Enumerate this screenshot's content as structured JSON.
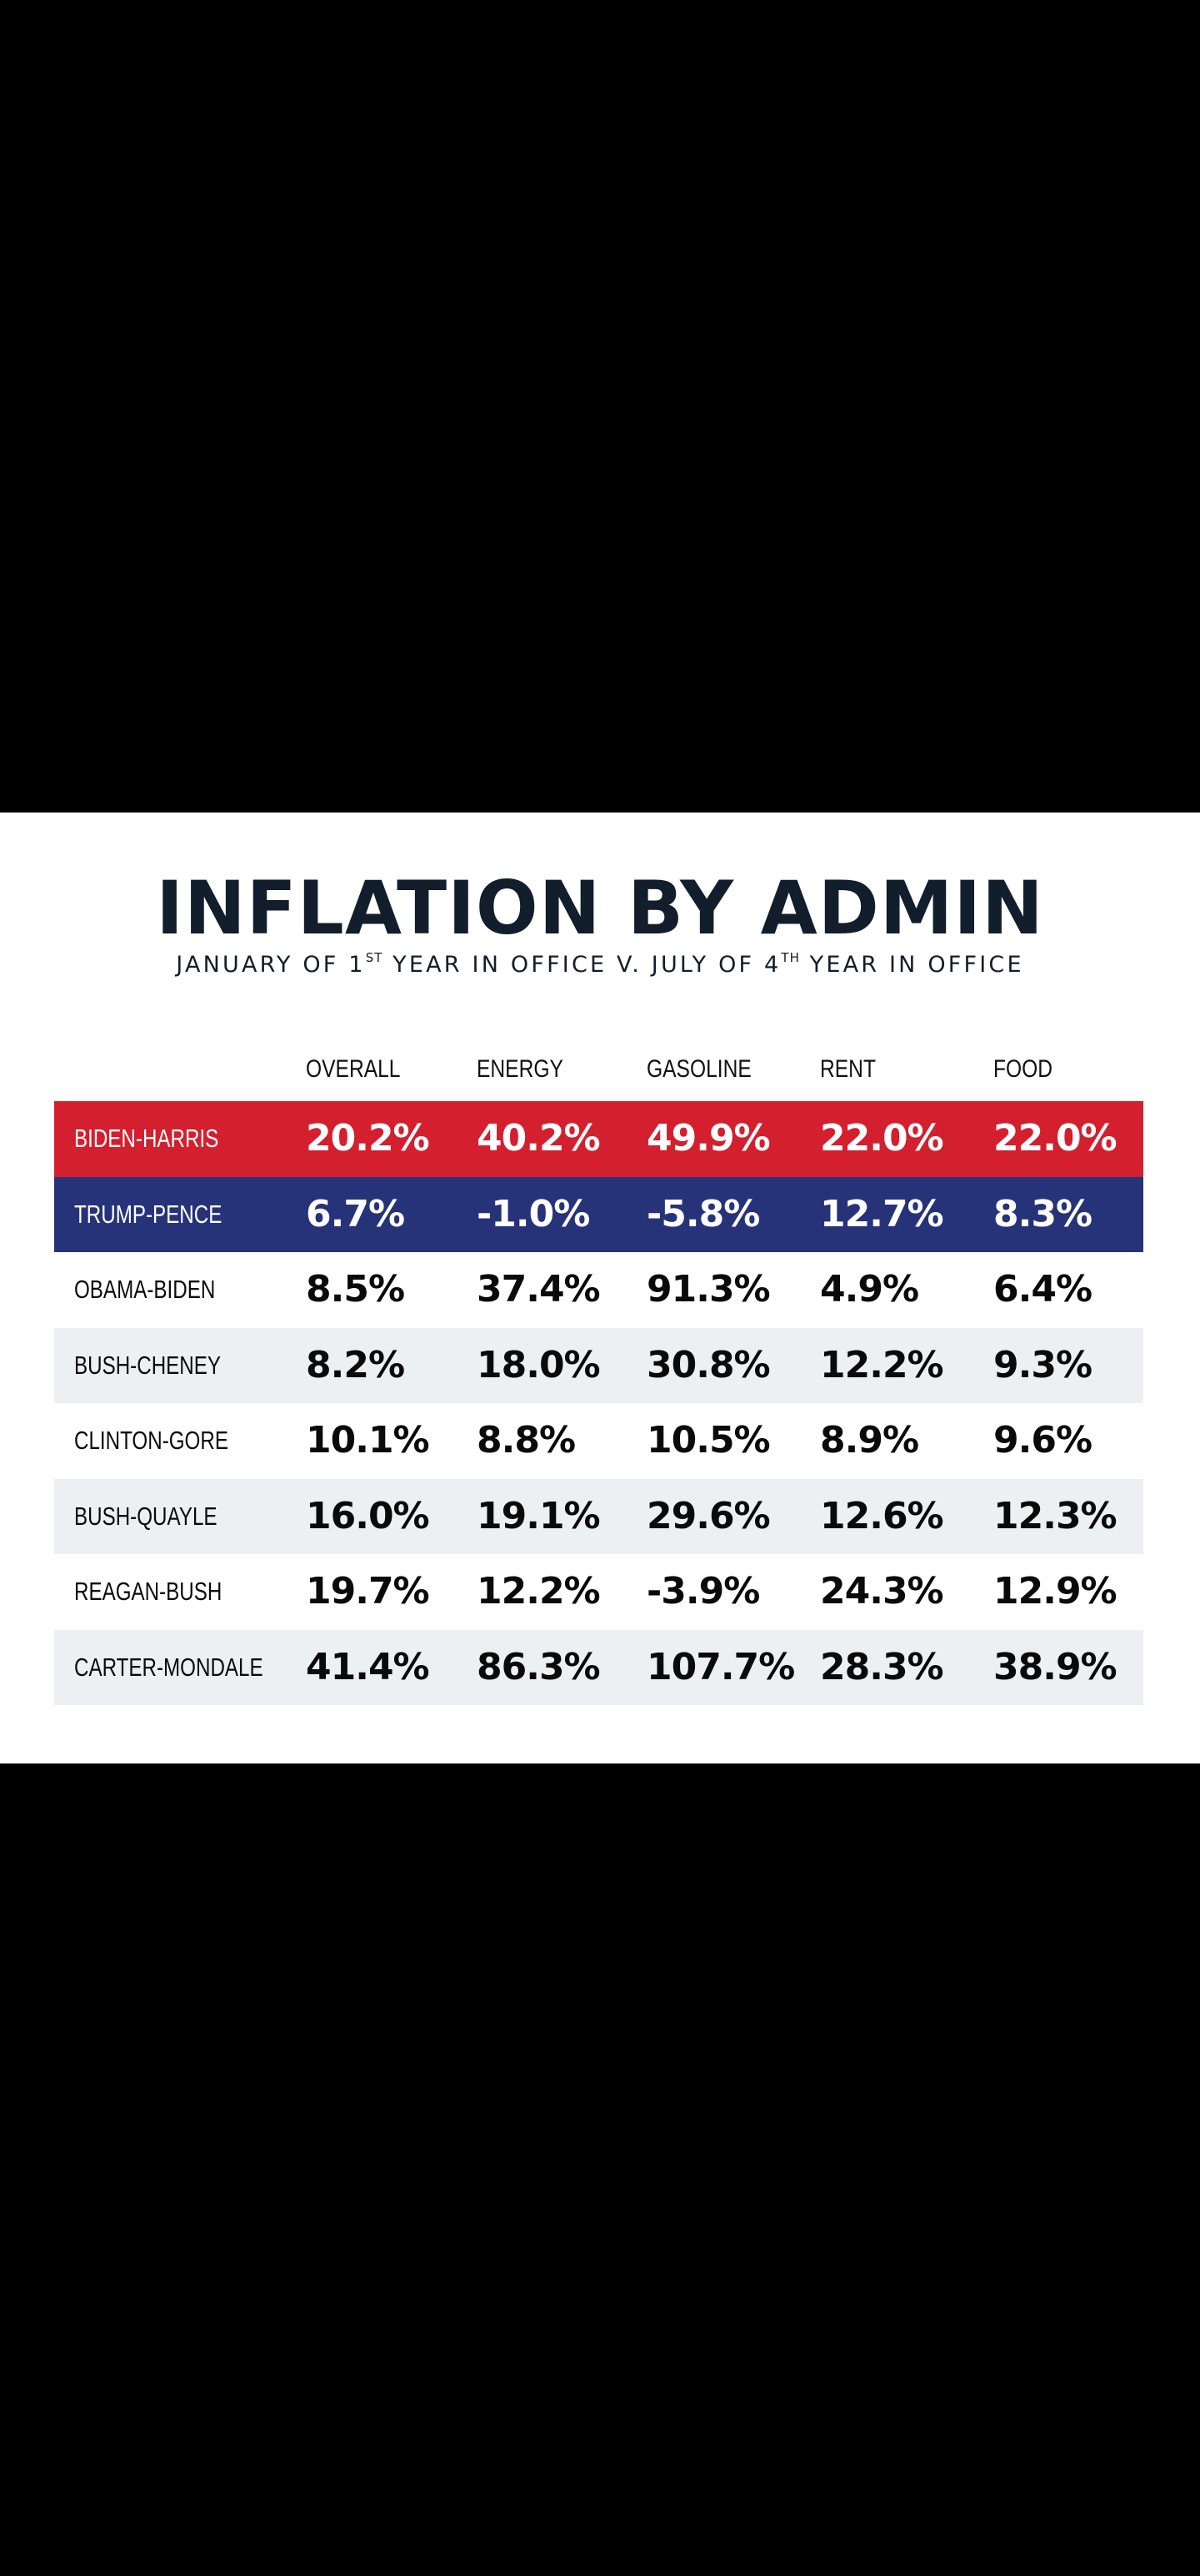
{
  "title": "INFLATION BY ADMIN",
  "subtitle": {
    "part1": "JANUARY OF 1",
    "sup1": "ST",
    "part2": " YEAR IN OFFICE V. JULY OF 4",
    "sup2": "TH",
    "part3": " YEAR IN OFFICE"
  },
  "colors": {
    "highlight_red": "#d41f2e",
    "highlight_blue": "#263379",
    "stripe_gray": "#edf0f3",
    "title_navy": "#121e2b"
  },
  "chart_data": {
    "type": "table",
    "title": "INFLATION BY ADMIN",
    "subtitle": "JANUARY OF 1ST YEAR IN OFFICE V. JULY OF 4TH YEAR IN OFFICE",
    "columns": [
      "OVERALL",
      "ENERGY",
      "GASOLINE",
      "RENT",
      "FOOD"
    ],
    "rows": [
      {
        "name": "BIDEN-HARRIS",
        "style": "red",
        "values": [
          "20.2%",
          "40.2%",
          "49.9%",
          "22.0%",
          "22.0%"
        ]
      },
      {
        "name": "TRUMP-PENCE",
        "style": "blue",
        "values": [
          "6.7%",
          "-1.0%",
          "-5.8%",
          "12.7%",
          "8.3%"
        ]
      },
      {
        "name": "OBAMA-BIDEN",
        "style": "white",
        "values": [
          "8.5%",
          "37.4%",
          "91.3%",
          "4.9%",
          "6.4%"
        ]
      },
      {
        "name": "BUSH-CHENEY",
        "style": "gray",
        "values": [
          "8.2%",
          "18.0%",
          "30.8%",
          "12.2%",
          "9.3%"
        ]
      },
      {
        "name": "CLINTON-GORE",
        "style": "white",
        "values": [
          "10.1%",
          "8.8%",
          "10.5%",
          "8.9%",
          "9.6%"
        ]
      },
      {
        "name": "BUSH-QUAYLE",
        "style": "gray",
        "values": [
          "16.0%",
          "19.1%",
          "29.6%",
          "12.6%",
          "12.3%"
        ]
      },
      {
        "name": "REAGAN-BUSH",
        "style": "white",
        "values": [
          "19.7%",
          "12.2%",
          "-3.9%",
          "24.3%",
          "12.9%"
        ]
      },
      {
        "name": "CARTER-MONDALE",
        "style": "gray",
        "values": [
          "41.4%",
          "86.3%",
          "107.7%",
          "28.3%",
          "38.9%"
        ]
      }
    ]
  }
}
